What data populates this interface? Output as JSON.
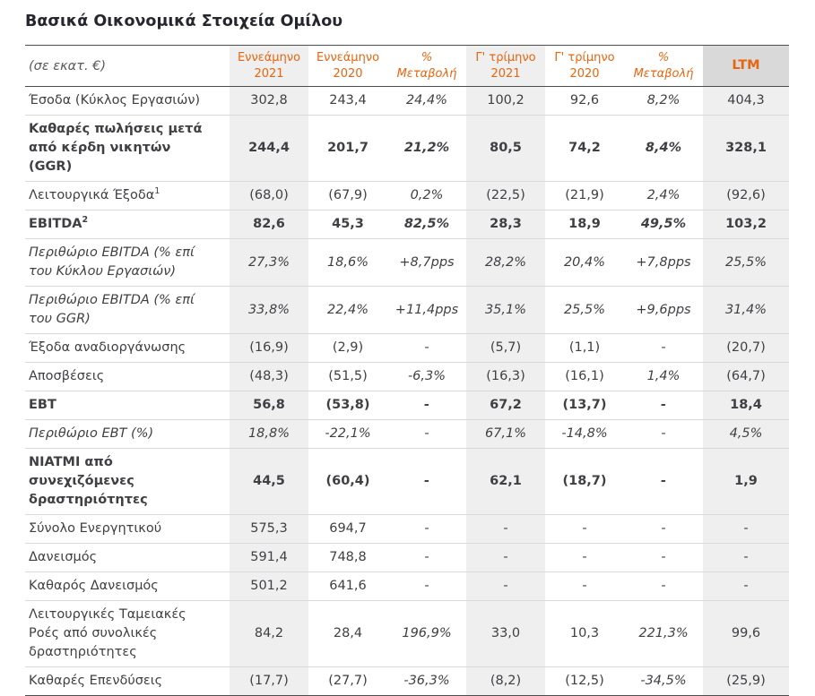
{
  "title": "Βασικά Οικονομικά Στοιχεία Ομίλου",
  "colors": {
    "accent": "#E8650F",
    "shade": "#EFEFEF",
    "ltm-bg": "#D9D9D9",
    "text": "#3F3F44",
    "title": "#26262E",
    "muted": "#595959",
    "row-line": "#D9D9D9",
    "strong-line": "#4D4D4D"
  },
  "table": {
    "unit_label": "(σε εκατ. €)",
    "columns": [
      {
        "label": "Εννεάμηνο\n2021",
        "shaded": true,
        "italic": false,
        "ltm": false
      },
      {
        "label": "Εννεάμηνο\n2020",
        "shaded": false,
        "italic": false,
        "ltm": false
      },
      {
        "label": "%\nΜεταβολή",
        "shaded": false,
        "italic": true,
        "ltm": false
      },
      {
        "label": "Γ' τρίμηνο\n2021",
        "shaded": true,
        "italic": false,
        "ltm": false
      },
      {
        "label": "Γ' τρίμηνο\n2020",
        "shaded": false,
        "italic": false,
        "ltm": false
      },
      {
        "label": "%\nΜεταβολή",
        "shaded": false,
        "italic": true,
        "ltm": false
      },
      {
        "label": "LTM",
        "shaded": true,
        "italic": false,
        "ltm": true
      }
    ],
    "rows": [
      {
        "label": "Έσοδα (Κύκλος Εργασιών)",
        "style": "normal",
        "values": [
          "302,8",
          "243,4",
          "24,4%",
          "100,2",
          "92,6",
          "8,2%",
          "404,3"
        ]
      },
      {
        "label": "Καθαρές πωλήσεις μετά από κέρδη νικητών (GGR)",
        "style": "bold",
        "values": [
          "244,4",
          "201,7",
          "21,2%",
          "80,5",
          "74,2",
          "8,4%",
          "328,1"
        ]
      },
      {
        "label": "Λειτουργικά Έξοδα",
        "sup": "1",
        "style": "normal",
        "values": [
          "(68,0)",
          "(67,9)",
          "0,2%",
          "(22,5)",
          "(21,9)",
          "2,4%",
          "(92,6)"
        ]
      },
      {
        "label": "EBITDA",
        "sup": "2",
        "style": "bold",
        "values": [
          "82,6",
          "45,3",
          "82,5%",
          "28,3",
          "18,9",
          "49,5%",
          "103,2"
        ]
      },
      {
        "label": "Περιθώριο EBITDA (% επί του Κύκλου Εργασιών)",
        "style": "italic",
        "values": [
          "27,3%",
          "18,6%",
          "+8,7pps",
          "28,2%",
          "20,4%",
          "+7,8pps",
          "25,5%"
        ]
      },
      {
        "label": "Περιθώριο EBITDA (% επί του GGR)",
        "style": "italic",
        "values": [
          "33,8%",
          "22,4%",
          "+11,4pps",
          "35,1%",
          "25,5%",
          "+9,6pps",
          "31,4%"
        ]
      },
      {
        "label": "Έξοδα αναδιοργάνωσης",
        "style": "normal",
        "values": [
          "(16,9)",
          "(2,9)",
          "-",
          "(5,7)",
          "(1,1)",
          "-",
          "(20,7)"
        ]
      },
      {
        "label": "Αποσβέσεις",
        "style": "normal",
        "values": [
          "(48,3)",
          "(51,5)",
          "-6,3%",
          "(16,3)",
          "(16,1)",
          "1,4%",
          "(64,7)"
        ]
      },
      {
        "label": "EBT",
        "style": "bold",
        "values": [
          "56,8",
          "(53,8)",
          "-",
          "67,2",
          "(13,7)",
          "-",
          "18,4"
        ]
      },
      {
        "label": "Περιθώριο EBT (%)",
        "style": "italic",
        "values": [
          "18,8%",
          "-22,1%",
          "-",
          "67,1%",
          "-14,8%",
          "-",
          "4,5%"
        ]
      },
      {
        "label": "NIATMI από συνεχιζόμενες δραστηριότητες",
        "style": "bold",
        "values": [
          "44,5",
          "(60,4)",
          "-",
          "62,1",
          "(18,7)",
          "-",
          "1,9"
        ]
      },
      {
        "label": "Σύνολο Ενεργητικού",
        "style": "normal",
        "values": [
          "575,3",
          "694,7",
          "-",
          "-",
          "-",
          "-",
          "-"
        ]
      },
      {
        "label": "Δανεισμός",
        "style": "normal",
        "values": [
          "591,4",
          "748,8",
          "-",
          "-",
          "-",
          "-",
          "-"
        ]
      },
      {
        "label": "Καθαρός Δανεισμός",
        "style": "normal",
        "values": [
          "501,2",
          "641,6",
          "-",
          "-",
          "-",
          "-",
          "-"
        ]
      },
      {
        "label": "Λειτουργικές Ταμειακές Ροές από συνολικές δραστηριότητες",
        "style": "normal",
        "values": [
          "84,2",
          "28,4",
          "196,9%",
          "33,0",
          "10,3",
          "221,3%",
          "99,6"
        ]
      },
      {
        "label": "Καθαρές Επενδύσεις",
        "style": "normal",
        "values": [
          "(17,7)",
          "(27,7)",
          "-36,3%",
          "(8,2)",
          "(12,5)",
          "-34,5%",
          "(25,9)"
        ]
      }
    ]
  }
}
